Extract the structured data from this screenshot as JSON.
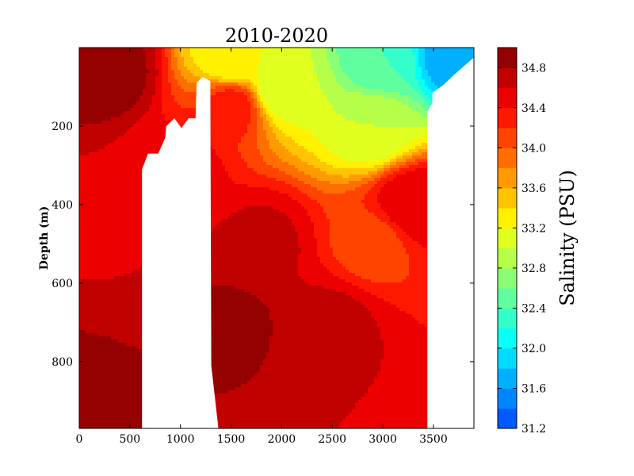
{
  "chart_data": {
    "type": "heatmap",
    "subtype": "filled-contour-section",
    "title": "2010-2020",
    "xlabel": "",
    "ylabel": "Depth (m)",
    "colorbar_label": "Salinity (PSU)",
    "xlim": [
      0,
      3900
    ],
    "ylim_depth": [
      0,
      970
    ],
    "y_inverted": true,
    "x_ticks": [
      0,
      500,
      1000,
      1500,
      2000,
      2500,
      3000,
      3500
    ],
    "y_ticks": [
      200,
      400,
      600,
      800
    ],
    "colorbar_range": [
      31.2,
      35.0
    ],
    "colorbar_ticks": [
      31.2,
      31.6,
      32.0,
      32.4,
      32.8,
      33.2,
      33.6,
      34.0,
      34.4,
      34.8
    ],
    "colormap": "jet",
    "colorbar_levels": 19,
    "masked_bathymetry": [
      {
        "x": 620,
        "depth": 970
      },
      {
        "x": 620,
        "depth": 310
      },
      {
        "x": 680,
        "depth": 270
      },
      {
        "x": 780,
        "depth": 270
      },
      {
        "x": 850,
        "depth": 230
      },
      {
        "x": 860,
        "depth": 200
      },
      {
        "x": 940,
        "depth": 180
      },
      {
        "x": 1010,
        "depth": 205
      },
      {
        "x": 1080,
        "depth": 180
      },
      {
        "x": 1150,
        "depth": 180
      },
      {
        "x": 1160,
        "depth": 90
      },
      {
        "x": 1220,
        "depth": 75
      },
      {
        "x": 1295,
        "depth": 85
      },
      {
        "x": 1305,
        "depth": 810
      },
      {
        "x": 1375,
        "depth": 970
      },
      {
        "x": 3440,
        "depth": 970
      },
      {
        "x": 3440,
        "depth": 165
      },
      {
        "x": 3490,
        "depth": 140
      },
      {
        "x": 3490,
        "depth": 115
      },
      {
        "x": 3600,
        "depth": 95
      },
      {
        "x": 3700,
        "depth": 70
      },
      {
        "x": 3900,
        "depth": 25
      }
    ],
    "salinity_field": [
      {
        "x": 0,
        "depth": 970,
        "salinity": 34.9
      },
      {
        "x": 300,
        "depth": 60,
        "salinity": 34.9
      },
      {
        "x": 1000,
        "depth": 300,
        "salinity": 34.5
      },
      {
        "x": 1500,
        "depth": 700,
        "salinity": 34.85
      },
      {
        "x": 1500,
        "depth": 150,
        "salinity": 34.3
      },
      {
        "x": 1800,
        "depth": 500,
        "salinity": 34.65
      },
      {
        "x": 2500,
        "depth": 700,
        "salinity": 34.65
      },
      {
        "x": 2900,
        "depth": 200,
        "salinity": 33.0
      },
      {
        "x": 2900,
        "depth": 500,
        "salinity": 34.1
      },
      {
        "x": 2000,
        "depth": 100,
        "salinity": 33.0
      },
      {
        "x": 1500,
        "depth": 30,
        "salinity": 33.2
      },
      {
        "x": 3000,
        "depth": 30,
        "salinity": 32.4
      },
      {
        "x": 3700,
        "depth": 15,
        "salinity": 31.6
      },
      {
        "x": 3300,
        "depth": 400,
        "salinity": 34.6
      }
    ]
  }
}
